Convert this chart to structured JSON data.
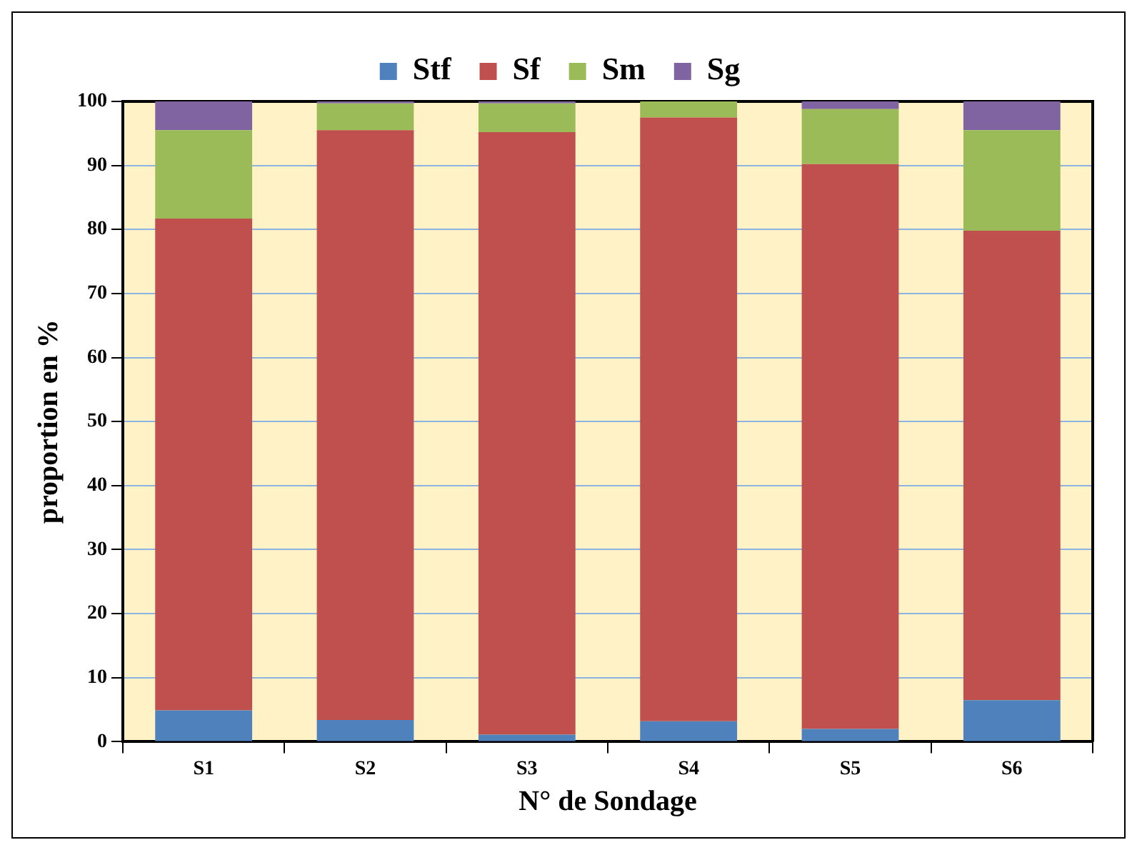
{
  "chart_data": {
    "type": "bar",
    "stacked": true,
    "categories": [
      "S1",
      "S2",
      "S3",
      "S4",
      "S5",
      "S6"
    ],
    "xlabel": "N° de Sondage",
    "ylabel": "proportion en %",
    "ylim": [
      0,
      100
    ],
    "yticks": [
      0,
      10,
      20,
      30,
      40,
      50,
      60,
      70,
      80,
      90,
      100
    ],
    "grid": "y",
    "legend": "top",
    "bands": [
      {
        "axis": "y",
        "from": 0,
        "to": 100,
        "color": "#fff2c6"
      }
    ],
    "series": [
      {
        "name": "Stf",
        "color": "#4f81bd",
        "values": [
          4.9,
          3.4,
          1.1,
          3.2,
          2.0,
          6.5
        ]
      },
      {
        "name": "Sf",
        "color": "#c0504d",
        "values": [
          76.8,
          92.1,
          94.1,
          94.3,
          88.2,
          73.3
        ]
      },
      {
        "name": "Sm",
        "color": "#9bbb59",
        "values": [
          13.8,
          4.2,
          4.5,
          2.5,
          8.6,
          15.7
        ]
      },
      {
        "name": "Sg",
        "color": "#8064a2",
        "values": [
          4.5,
          0.3,
          0.3,
          0,
          1.2,
          4.5
        ]
      }
    ]
  }
}
